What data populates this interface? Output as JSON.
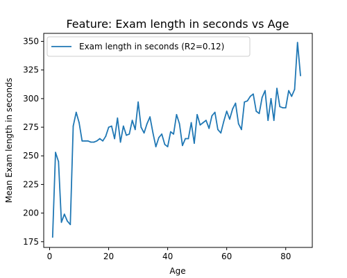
{
  "chart_data": {
    "type": "line",
    "title": "Feature: Exam length in seconds vs Age",
    "xlabel": "Age",
    "ylabel": "Mean Exam length in seconds",
    "xlim": [
      -2,
      89
    ],
    "ylim": [
      170,
      357
    ],
    "xticks": [
      0,
      20,
      40,
      60,
      80
    ],
    "xtick_labels": [
      "0",
      "20",
      "40",
      "60",
      "80"
    ],
    "yticks": [
      175,
      200,
      225,
      250,
      275,
      300,
      325,
      350
    ],
    "ytick_labels": [
      "175",
      "200",
      "225",
      "250",
      "275",
      "300",
      "325",
      "350"
    ],
    "grid": false,
    "legend_position": "upper-left",
    "series": [
      {
        "name": "Exam length in seconds (R2=0.12)",
        "color": "#1f77b4",
        "x": [
          1,
          2,
          3,
          4,
          5,
          6,
          7,
          8,
          9,
          10,
          11,
          12,
          13,
          14,
          15,
          16,
          17,
          18,
          19,
          20,
          21,
          22,
          23,
          24,
          25,
          26,
          27,
          28,
          29,
          30,
          31,
          32,
          33,
          34,
          35,
          36,
          37,
          38,
          39,
          40,
          41,
          42,
          43,
          44,
          45,
          46,
          47,
          48,
          49,
          50,
          51,
          52,
          53,
          54,
          55,
          56,
          57,
          58,
          59,
          60,
          61,
          62,
          63,
          64,
          65,
          66,
          67,
          68,
          69,
          70,
          71,
          72,
          73,
          74,
          75,
          76,
          77,
          78,
          79,
          80,
          81,
          82,
          83,
          84,
          85
        ],
        "values": [
          179,
          253,
          245,
          192,
          199,
          193,
          190,
          276,
          288,
          279,
          263,
          263,
          263,
          262,
          262,
          263,
          265,
          263,
          267,
          275,
          276,
          265,
          283,
          262,
          276,
          268,
          269,
          281,
          273,
          297,
          275,
          270,
          278,
          284,
          270,
          258,
          266,
          269,
          260,
          258,
          271,
          269,
          286,
          278,
          259,
          265,
          265,
          279,
          261,
          286,
          277,
          279,
          281,
          274,
          285,
          288,
          273,
          270,
          280,
          289,
          282,
          291,
          296,
          278,
          273,
          297,
          298,
          302,
          304,
          289,
          287,
          301,
          307,
          281,
          300,
          281,
          309,
          293,
          292,
          292,
          307,
          302,
          308,
          349,
          320
        ]
      }
    ]
  }
}
